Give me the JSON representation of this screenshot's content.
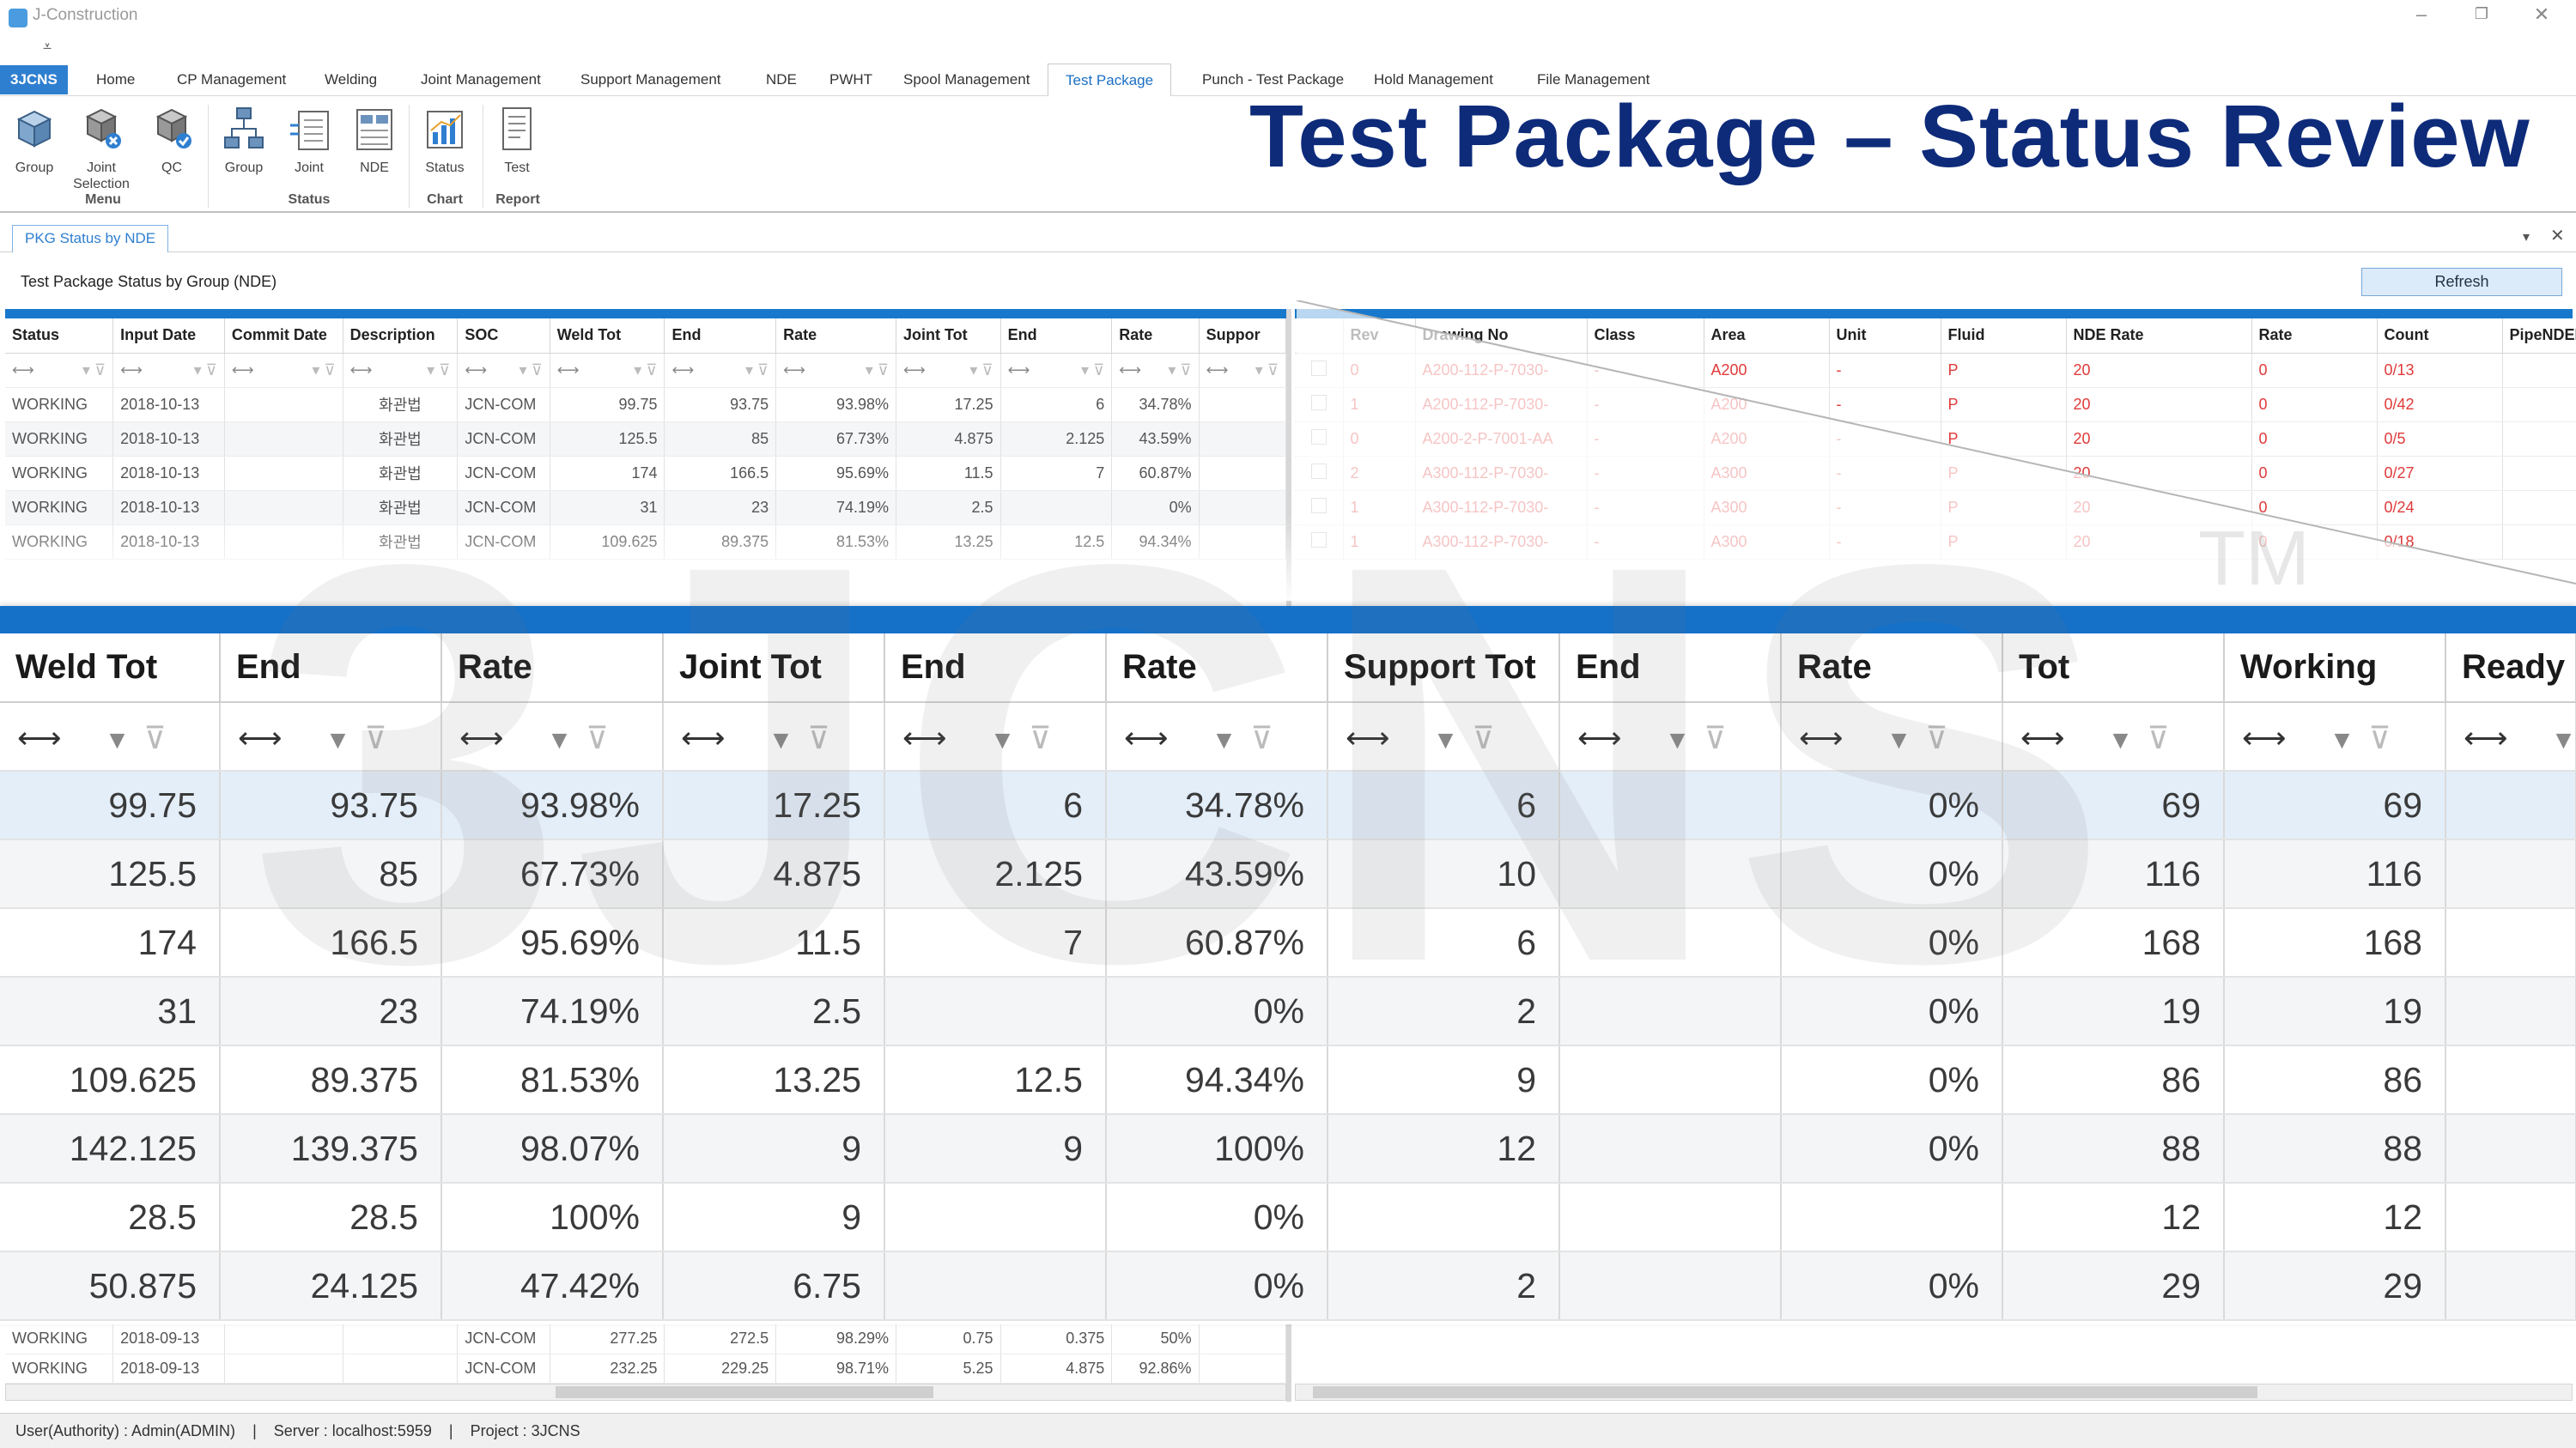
{
  "window": {
    "title": "J-Construction"
  },
  "headline": "Test Package – Status Review",
  "menu_tabs": [
    "3JCNS",
    "Home",
    "CP Management",
    "Welding",
    "Joint Management",
    "Support Management",
    "NDE",
    "PWHT",
    "Spool Management",
    "Test Package",
    "Punch - Test Package",
    "Hold Management",
    "File Management"
  ],
  "active_tab": "Test Package",
  "ribbon": {
    "buttons": [
      "Group",
      "Joint Selection",
      "QC",
      "Group",
      "Joint",
      "NDE",
      "Status",
      "Test"
    ],
    "groups": [
      "Menu",
      "Status",
      "Chart",
      "Report"
    ]
  },
  "doc_tab": "PKG Status by NDE",
  "caption": "Test Package Status by Group (NDE)",
  "refresh_label": "Refresh",
  "left_grid": {
    "columns": [
      "Status",
      "Input Date",
      "Commit Date",
      "Description",
      "SOC",
      "Weld Tot",
      "End",
      "Rate",
      "Joint Tot",
      "End",
      "Rate",
      "Suppor"
    ],
    "rows": [
      [
        "WORKING",
        "2018-10-13",
        "",
        "화관법",
        "JCN-COM",
        "99.75",
        "93.75",
        "93.98%",
        "17.25",
        "6",
        "34.78%"
      ],
      [
        "WORKING",
        "2018-10-13",
        "",
        "화관법",
        "JCN-COM",
        "125.5",
        "85",
        "67.73%",
        "4.875",
        "2.125",
        "43.59%"
      ],
      [
        "WORKING",
        "2018-10-13",
        "",
        "화관법",
        "JCN-COM",
        "174",
        "166.5",
        "95.69%",
        "11.5",
        "7",
        "60.87%"
      ],
      [
        "WORKING",
        "2018-10-13",
        "",
        "화관법",
        "JCN-COM",
        "31",
        "23",
        "74.19%",
        "2.5",
        "",
        "0%"
      ],
      [
        "WORKING",
        "2018-10-13",
        "",
        "화관법",
        "JCN-COM",
        "109.625",
        "89.375",
        "81.53%",
        "13.25",
        "12.5",
        "94.34%"
      ]
    ],
    "bottom_rows": [
      [
        "WORKING",
        "2018-09-13",
        "",
        "",
        "JCN-COM",
        "277.25",
        "272.5",
        "98.29%",
        "0.75",
        "0.375",
        "50%"
      ],
      [
        "WORKING",
        "2018-09-13",
        "",
        "",
        "JCN-COM",
        "232.25",
        "229.25",
        "98.71%",
        "5.25",
        "4.875",
        "92.86%"
      ]
    ]
  },
  "right_grid": {
    "columns": [
      "",
      "Rev",
      "Drawing No",
      "Class",
      "Area",
      "Unit",
      "Fluid",
      "NDE Rate",
      "Rate",
      "Count",
      "PipeNDER"
    ],
    "rows": [
      [
        "0",
        "A200-112-P-7030-",
        "-",
        "A200",
        "-",
        "P",
        "20",
        "0",
        "0/13"
      ],
      [
        "1",
        "A200-112-P-7030-",
        "-",
        "A200",
        "-",
        "P",
        "20",
        "0",
        "0/42"
      ],
      [
        "0",
        "A200-2-P-7001-AA",
        "-",
        "A200",
        "-",
        "P",
        "20",
        "0",
        "0/5"
      ],
      [
        "2",
        "A300-112-P-7030-",
        "-",
        "A300",
        "-",
        "P",
        "20",
        "0",
        "0/27"
      ],
      [
        "1",
        "A300-112-P-7030-",
        "-",
        "A300",
        "-",
        "P",
        "20",
        "0",
        "0/24"
      ],
      [
        "1",
        "A300-112-P-7030-",
        "-",
        "A300",
        "-",
        "P",
        "20",
        "0",
        "0/18"
      ]
    ]
  },
  "zoom_grid": {
    "columns": [
      "Weld Tot",
      "End",
      "Rate",
      "Joint Tot",
      "End",
      "Rate",
      "Support Tot",
      "End",
      "Rate",
      "Tot",
      "Working",
      "Ready"
    ],
    "rows": [
      [
        "99.75",
        "93.75",
        "93.98%",
        "17.25",
        "6",
        "34.78%",
        "6",
        "",
        "0%",
        "69",
        "69",
        ""
      ],
      [
        "125.5",
        "85",
        "67.73%",
        "4.875",
        "2.125",
        "43.59%",
        "10",
        "",
        "0%",
        "116",
        "116",
        ""
      ],
      [
        "174",
        "166.5",
        "95.69%",
        "11.5",
        "7",
        "60.87%",
        "6",
        "",
        "0%",
        "168",
        "168",
        ""
      ],
      [
        "31",
        "23",
        "74.19%",
        "2.5",
        "",
        "0%",
        "2",
        "",
        "0%",
        "19",
        "19",
        ""
      ],
      [
        "109.625",
        "89.375",
        "81.53%",
        "13.25",
        "12.5",
        "94.34%",
        "9",
        "",
        "0%",
        "86",
        "86",
        ""
      ],
      [
        "142.125",
        "139.375",
        "98.07%",
        "9",
        "9",
        "100%",
        "12",
        "",
        "0%",
        "88",
        "88",
        ""
      ],
      [
        "28.5",
        "28.5",
        "100%",
        "9",
        "",
        "0%",
        "",
        "",
        "",
        "12",
        "12",
        ""
      ],
      [
        "50.875",
        "24.125",
        "47.42%",
        "6.75",
        "",
        "0%",
        "2",
        "",
        "0%",
        "29",
        "29",
        ""
      ]
    ]
  },
  "watermark": "3JCNS",
  "trademark": "TM",
  "status_bar": {
    "user": "User(Authority) : Admin(ADMIN)",
    "server": "Server : localhost:5959",
    "project": "Project : 3JCNS",
    "sep": "|"
  },
  "colors": {
    "brand_blue": "#2f7fd0",
    "headline": "#0e2b7a",
    "grid_bar": "#1778cc",
    "red_text": "#e03a3a"
  }
}
